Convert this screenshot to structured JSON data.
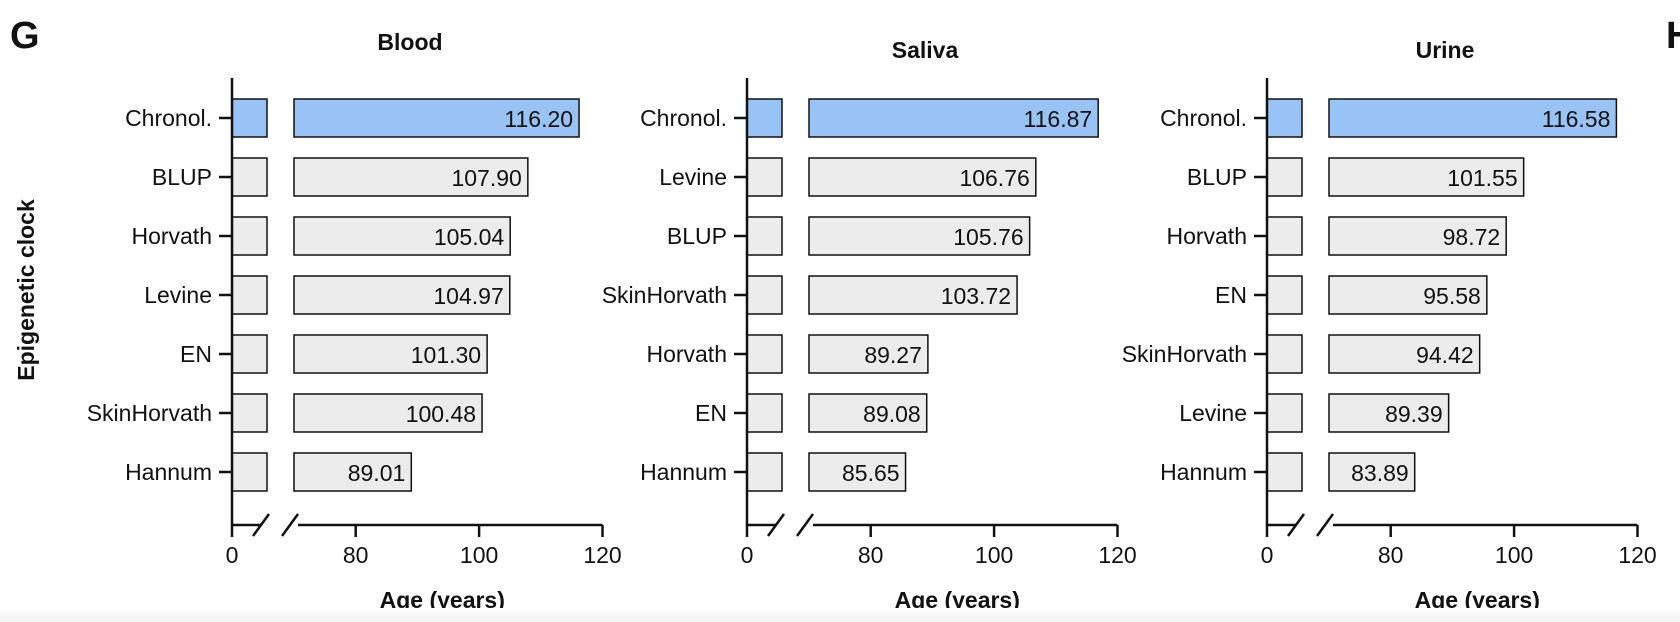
{
  "panel_letters": [
    "G",
    "H"
  ],
  "y_axis_title": "Epigenetic clock",
  "colors": {
    "highlight": "#99c2f5",
    "bar": "#ececec",
    "stroke": "#111111"
  },
  "chart_data": [
    {
      "type": "bar",
      "orientation": "horizontal",
      "title": "Blood",
      "xlabel": "Age (years)",
      "ylabel": "Epigenetic clock",
      "categories": [
        "Chronol.",
        "BLUP",
        "Horvath",
        "Levine",
        "EN",
        "SkinHorvath",
        "Hannum"
      ],
      "values": [
        116.2,
        107.9,
        105.04,
        104.97,
        101.3,
        100.48,
        89.01
      ],
      "value_labels": [
        "116.20",
        "107.90",
        "105.04",
        "104.97",
        "101.30",
        "100.48",
        "89.01"
      ],
      "highlight_category": "Chronol.",
      "xlim": [
        0,
        120
      ],
      "axis_break": [
        10,
        70
      ],
      "x_ticks": [
        0,
        80,
        100,
        120
      ],
      "x_tick_labels": [
        "0",
        "80",
        "100",
        "120"
      ]
    },
    {
      "type": "bar",
      "orientation": "horizontal",
      "title": "Saliva",
      "xlabel": "Age (years)",
      "ylabel": "",
      "categories": [
        "Chronol.",
        "Levine",
        "BLUP",
        "SkinHorvath",
        "Horvath",
        "EN",
        "Hannum"
      ],
      "values": [
        116.87,
        106.76,
        105.76,
        103.72,
        89.27,
        89.08,
        85.65
      ],
      "value_labels": [
        "116.87",
        "106.76",
        "105.76",
        "103.72",
        "89.27",
        "89.08",
        "85.65"
      ],
      "highlight_category": "Chronol.",
      "xlim": [
        0,
        120
      ],
      "axis_break": [
        10,
        70
      ],
      "x_ticks": [
        0,
        80,
        100,
        120
      ],
      "x_tick_labels": [
        "0",
        "80",
        "100",
        "120"
      ]
    },
    {
      "type": "bar",
      "orientation": "horizontal",
      "title": "Urine",
      "xlabel": "Age (years)",
      "ylabel": "",
      "categories": [
        "Chronol.",
        "BLUP",
        "Horvath",
        "EN",
        "SkinHorvath",
        "Levine",
        "Hannum"
      ],
      "values": [
        116.58,
        101.55,
        98.72,
        95.58,
        94.42,
        89.39,
        83.89
      ],
      "value_labels": [
        "116.58",
        "101.55",
        "98.72",
        "95.58",
        "94.42",
        "89.39",
        "83.89"
      ],
      "highlight_category": "Chronol.",
      "xlim": [
        0,
        120
      ],
      "axis_break": [
        10,
        70
      ],
      "x_ticks": [
        0,
        80,
        100,
        120
      ],
      "x_tick_labels": [
        "0",
        "80",
        "100",
        "120"
      ]
    }
  ]
}
